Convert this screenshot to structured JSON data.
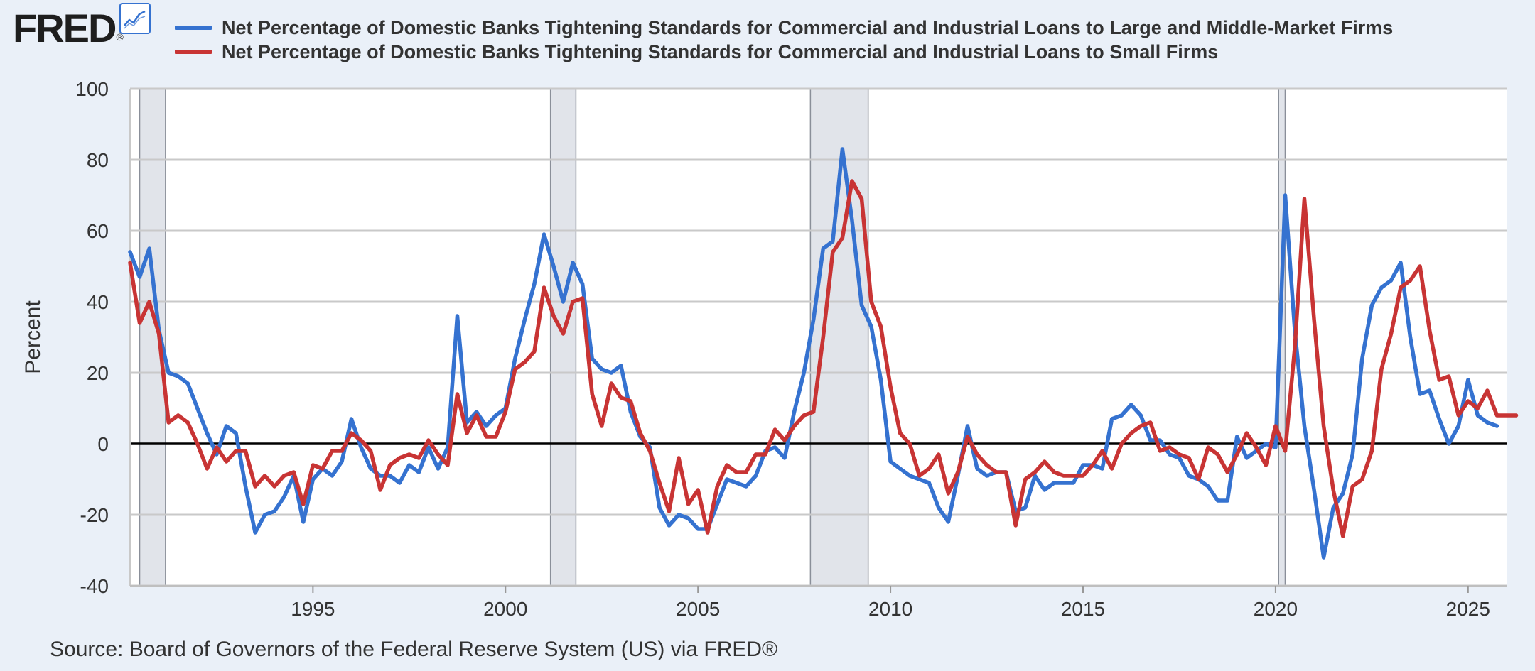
{
  "header": {
    "logo_text": "FRED",
    "logo_mark": "®",
    "chart_icon": "line-chart-icon"
  },
  "source_text": "Source: Board of Governors of the Federal Reserve System (US) via FRED®",
  "colors": {
    "background": "#eaf0f8",
    "plot_background": "#ffffff",
    "series_large": "#3572d0",
    "series_small": "#c83434",
    "recession": "#e1e4ea",
    "grid": "#c9c9c9",
    "zero_line": "#000000"
  },
  "chart_data": {
    "type": "line",
    "ylabel": "Percent",
    "xlabel": "",
    "ylim": [
      -40,
      100
    ],
    "xlim": [
      1990.25,
      2026.0
    ],
    "y_ticks": [
      100,
      80,
      60,
      40,
      20,
      0,
      -20,
      -40
    ],
    "y_tick_labels": [
      "100",
      "80",
      "60",
      "40",
      "20",
      "0",
      "-20",
      "-40"
    ],
    "x_ticks": [
      1995,
      2000,
      2005,
      2010,
      2015,
      2020,
      2025
    ],
    "x_tick_labels": [
      "1995",
      "2000",
      "2005",
      "2010",
      "2015",
      "2020",
      "2025"
    ],
    "grid": "horizontal",
    "legend_position": "top",
    "recessions": [
      [
        1990.5,
        1991.17
      ],
      [
        2001.17,
        2001.83
      ],
      [
        2007.92,
        2009.42
      ],
      [
        2020.08,
        2020.25
      ]
    ],
    "series": [
      {
        "name": "Net Percentage of Domestic Banks Tightening Standards for Commercial and Industrial Loans to Large and Middle-Market Firms",
        "start": 1990.25,
        "step": 0.25,
        "values": [
          54,
          47,
          55,
          32,
          20,
          19,
          17,
          10,
          3,
          -3,
          5,
          3,
          -12,
          -25,
          -20,
          -19,
          -15,
          -9,
          -22,
          -10,
          -7,
          -9,
          -5,
          7,
          -1,
          -7,
          -9,
          -9,
          -11,
          -6,
          -8,
          -1,
          -7,
          -1,
          36,
          6,
          9,
          5,
          8,
          10,
          24,
          35,
          45,
          59,
          50,
          40,
          51,
          45,
          24,
          21,
          20,
          22,
          9,
          2,
          -1,
          -18,
          -23,
          -20,
          -21,
          -24,
          -24,
          -17,
          -10,
          -11,
          -12,
          -9,
          -2,
          -1,
          -4,
          9,
          20,
          35,
          55,
          57,
          83,
          63,
          39,
          33,
          18,
          -5,
          -7,
          -9,
          -10,
          -11,
          -18,
          -22,
          -9,
          5,
          -7,
          -9,
          -8,
          -8,
          -19,
          -18,
          -9,
          -13,
          -11,
          -11,
          -11,
          -6,
          -6,
          -7,
          7,
          8,
          11,
          8,
          1,
          1,
          -3,
          -4,
          -9,
          -10,
          -12,
          -16,
          -16,
          2,
          -4,
          -2,
          0,
          -1,
          70,
          32,
          5,
          -13,
          -32,
          -18,
          -14,
          -3,
          24,
          39,
          44,
          46,
          51,
          30,
          14,
          15,
          7,
          0,
          5,
          18,
          8,
          6,
          5
        ]
      },
      {
        "name": "Net Percentage of Domestic Banks Tightening Standards for Commercial and Industrial Loans to Small Firms",
        "start": 1990.25,
        "step": 0.25,
        "values": [
          51,
          34,
          40,
          31,
          6,
          8,
          6,
          0,
          -7,
          -1,
          -5,
          -2,
          -2,
          -12,
          -9,
          -12,
          -9,
          -8,
          -17,
          -6,
          -7,
          -2,
          -2,
          3,
          1,
          -2,
          -13,
          -6,
          -4,
          -3,
          -4,
          1,
          -3,
          -6,
          14,
          3,
          8,
          2,
          2,
          9,
          21,
          23,
          26,
          44,
          36,
          31,
          40,
          41,
          14,
          5,
          17,
          13,
          12,
          3,
          -2,
          -11,
          -19,
          -4,
          -17,
          -13,
          -25,
          -12,
          -6,
          -8,
          -8,
          -3,
          -3,
          4,
          1,
          5,
          8,
          9,
          30,
          54,
          58,
          74,
          69,
          40,
          33,
          16,
          3,
          0,
          -9,
          -7,
          -3,
          -14,
          -8,
          2,
          -3,
          -6,
          -8,
          -8,
          -23,
          -10,
          -8,
          -5,
          -8,
          -9,
          -9,
          -9,
          -6,
          -2,
          -7,
          0,
          3,
          5,
          6,
          -2,
          -1,
          -3,
          -4,
          -10,
          -1,
          -3,
          -8,
          -3,
          3,
          -1,
          -6,
          5,
          -2,
          27,
          69,
          35,
          5,
          -13,
          -26,
          -12,
          -10,
          -2,
          21,
          31,
          44,
          46,
          50,
          32,
          18,
          19,
          8,
          12,
          10,
          15,
          8,
          8,
          8
        ]
      }
    ]
  }
}
